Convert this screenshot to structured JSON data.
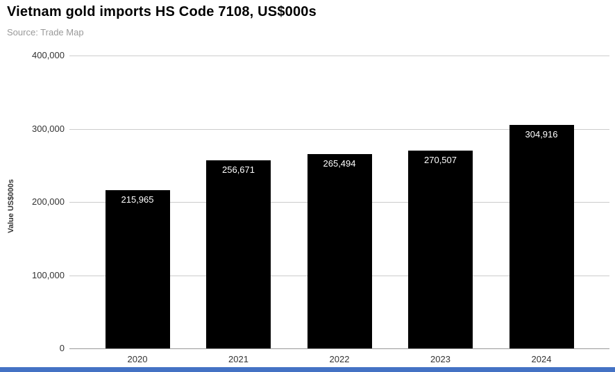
{
  "chart_data": {
    "type": "bar",
    "title": "Vietnam gold imports HS Code 7108, US$000s",
    "source": "Source: Trade Map",
    "categories": [
      "2020",
      "2021",
      "2022",
      "2023",
      "2024"
    ],
    "values": [
      215965,
      256671,
      265494,
      270507,
      304916
    ],
    "value_labels": [
      "215,965",
      "256,671",
      "265,494",
      "270,507",
      "304,916"
    ],
    "xlabel": "",
    "ylabel": "Value US$000s",
    "ylim": [
      0,
      400000
    ],
    "yticks": [
      0,
      100000,
      200000,
      300000,
      400000
    ],
    "ytick_labels": [
      "0",
      "100,000",
      "200,000",
      "300,000",
      "400,000"
    ],
    "grid": true,
    "legend": "none",
    "colors": {
      "bar": "#000000",
      "bar_label": "#ffffff",
      "grid": "#cccccc",
      "axis": "#999999",
      "footer_bar": "#4472c4",
      "subtitle": "#999999",
      "tick_text": "#333333"
    }
  }
}
